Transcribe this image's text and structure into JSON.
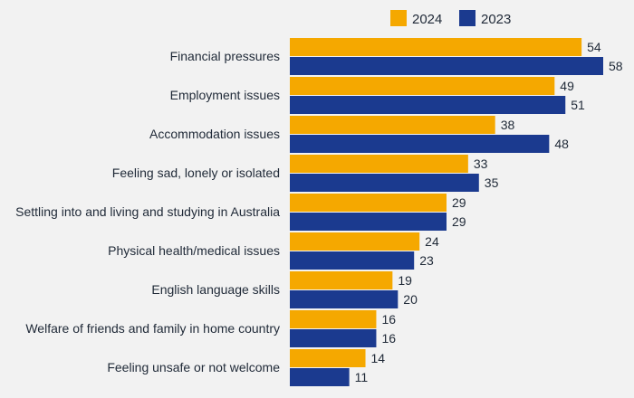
{
  "chart_data": {
    "type": "bar",
    "orientation": "horizontal",
    "categories": [
      "Financial pressures",
      "Employment issues",
      "Accommodation issues",
      "Feeling sad, lonely or isolated",
      "Settling into and living and studying in Australia",
      "Physical health/medical issues",
      "English language skills",
      "Welfare of friends and family in home country",
      "Feeling unsafe or not welcome"
    ],
    "series": [
      {
        "name": "2024",
        "color": "#f5a800",
        "values": [
          54,
          49,
          38,
          33,
          29,
          24,
          19,
          16,
          14
        ]
      },
      {
        "name": "2023",
        "color": "#1b3a8f",
        "values": [
          58,
          51,
          48,
          35,
          29,
          23,
          20,
          16,
          11
        ]
      }
    ],
    "xlim": [
      0,
      60
    ],
    "grid": false,
    "legend_position": "top-right"
  }
}
